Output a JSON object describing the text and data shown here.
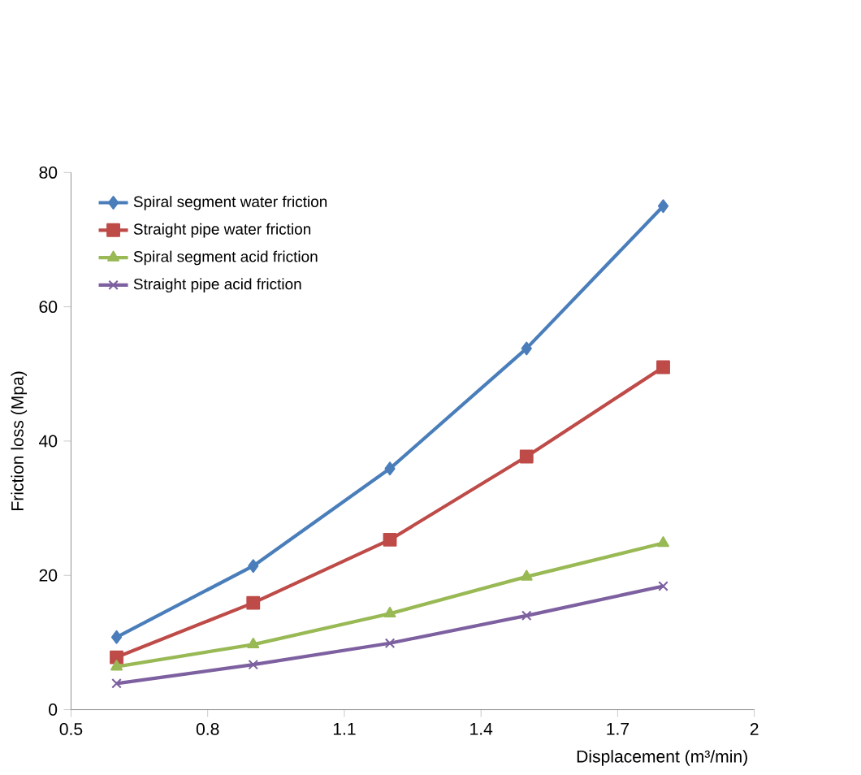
{
  "chart_data": {
    "type": "line",
    "xlabel": "Displacement (m³/min)",
    "ylabel": "Friction loss (Mpa)",
    "x": [
      0.6,
      0.9,
      1.2,
      1.5,
      1.8
    ],
    "series": [
      {
        "name": "Spiral segment water friction",
        "color": "#4a7ebb",
        "marker": "diamond",
        "values": [
          10.8,
          21.4,
          35.9,
          53.8,
          75
        ]
      },
      {
        "name": "Straight pipe water friction",
        "color": "#be4b48",
        "marker": "square",
        "values": [
          7.8,
          15.9,
          25.3,
          37.7,
          51
        ]
      },
      {
        "name": "Spiral segment acid friction",
        "color": "#98b954",
        "marker": "triangle",
        "values": [
          6.4,
          9.7,
          14.3,
          19.8,
          24.8
        ]
      },
      {
        "name": "Straight pipe acid friction",
        "color": "#7d60a0",
        "marker": "cross",
        "values": [
          3.9,
          6.7,
          9.9,
          14,
          18.4
        ]
      }
    ],
    "xlim": [
      0.5,
      2
    ],
    "ylim": [
      0,
      80
    ],
    "xticks": [
      {
        "value": 0.5,
        "label": "0.5"
      },
      {
        "value": 0.8,
        "label": "0.8"
      },
      {
        "value": 1.1,
        "label": "1.1"
      },
      {
        "value": 1.4,
        "label": "1.4"
      },
      {
        "value": 1.7,
        "label": "1.7"
      },
      {
        "value": 2,
        "label": "2"
      }
    ],
    "yticks": [
      0,
      20,
      40,
      60,
      80
    ],
    "grid": false,
    "legend": "top left",
    "line_style": "solid"
  }
}
